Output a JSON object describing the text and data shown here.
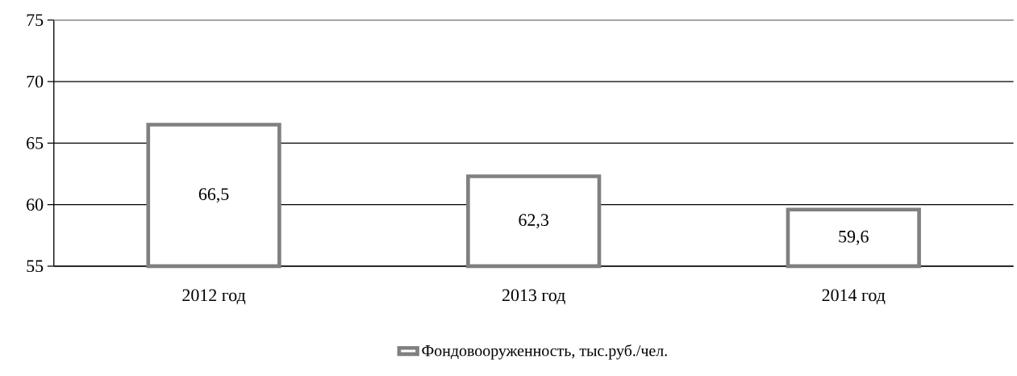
{
  "chart_data": {
    "type": "bar",
    "categories": [
      "2012 год",
      "2013 год",
      "2014 год"
    ],
    "series": [
      {
        "name": "Фондовооруженность, тыс.руб./чел.",
        "color": "#808080",
        "values": [
          66.5,
          62.3,
          59.6
        ],
        "value_labels": [
          "66,5",
          "62,3",
          "59,6"
        ]
      }
    ],
    "ylim": [
      55,
      75
    ],
    "yticks": [
      55,
      60,
      65,
      70,
      75
    ],
    "grid": "y",
    "legend": "bottom"
  }
}
